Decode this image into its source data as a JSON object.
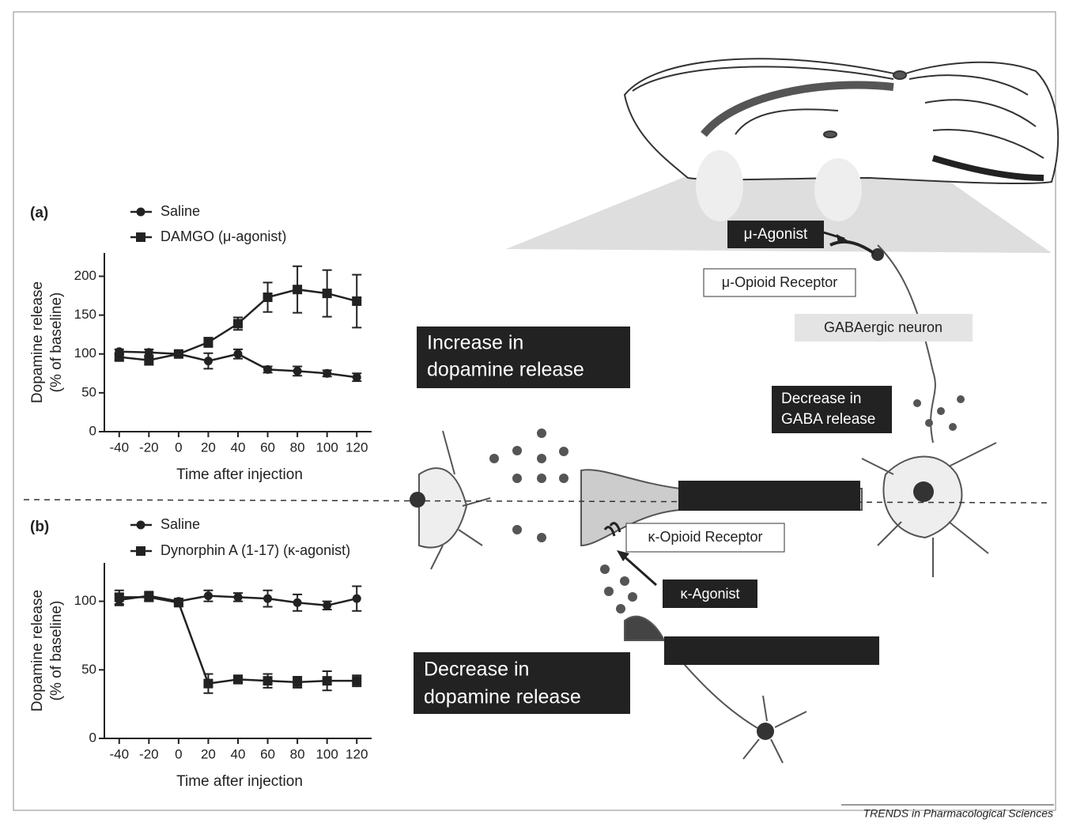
{
  "chart_data": [
    {
      "type": "line",
      "panel": "(a)",
      "xlabel": "Time after injection",
      "ylabel": [
        "Dopamine release",
        "(% of baseline)"
      ],
      "x": [
        -40,
        -20,
        0,
        20,
        40,
        60,
        80,
        100,
        120
      ],
      "xlim": [
        -50,
        130
      ],
      "xticks": [
        -40,
        -20,
        0,
        20,
        40,
        60,
        80,
        100,
        120
      ],
      "ylim": [
        0,
        230
      ],
      "yticks": [
        0,
        50,
        100,
        150,
        200
      ],
      "series": [
        {
          "name": "Saline",
          "color": "#222222",
          "marker": "circle",
          "values": [
            103,
            102,
            100,
            91,
            100,
            80,
            78,
            75,
            70
          ],
          "errors": [
            3,
            4,
            3,
            10,
            6,
            4,
            6,
            4,
            5
          ]
        },
        {
          "name": "DAMGO (μ-agonist)",
          "color": "#222222",
          "marker": "square",
          "values": [
            96,
            92,
            100,
            115,
            139,
            173,
            183,
            178,
            168
          ],
          "errors": [
            4,
            6,
            3,
            6,
            8,
            19,
            30,
            30,
            34
          ]
        }
      ]
    },
    {
      "type": "line",
      "panel": "(b)",
      "xlabel": "Time after injection",
      "ylabel": [
        "Dopamine release",
        "(% of baseline)"
      ],
      "x": [
        -40,
        -20,
        0,
        20,
        40,
        60,
        80,
        100,
        120
      ],
      "xlim": [
        -50,
        130
      ],
      "xticks": [
        -40,
        -20,
        0,
        20,
        40,
        60,
        80,
        100,
        120
      ],
      "ylim": [
        0,
        128
      ],
      "yticks": [
        0,
        50,
        100
      ],
      "series": [
        {
          "name": "Saline",
          "color": "#222222",
          "marker": "circle",
          "values": [
            101,
            104,
            100,
            104,
            103,
            102,
            99,
            97,
            102
          ],
          "errors": [
            4,
            3,
            2,
            4,
            3,
            6,
            6,
            3,
            9
          ]
        },
        {
          "name": "Dynorphin A (1-17) (κ-agonist)",
          "color": "#222222",
          "marker": "square",
          "values": [
            103,
            103,
            99,
            40,
            43,
            42,
            41,
            42,
            42
          ],
          "errors": [
            5,
            3,
            2,
            7,
            3,
            5,
            4,
            7,
            4
          ]
        }
      ]
    }
  ],
  "diagram": {
    "mu_agonist": "μ-Agonist",
    "mu_receptor": "μ-Opioid Receptor",
    "gaba_neuron": "GABAergic neuron",
    "increase": [
      "Increase in",
      "dopamine release"
    ],
    "gaba_decrease": [
      "Decrease in",
      "GABA release"
    ],
    "kappa_receptor": "κ-Opioid Receptor",
    "kappa_agonist": "κ-Agonist",
    "decrease": [
      "Decrease in",
      "dopamine release"
    ]
  },
  "footer": "TRENDS in Pharmacological Sciences"
}
